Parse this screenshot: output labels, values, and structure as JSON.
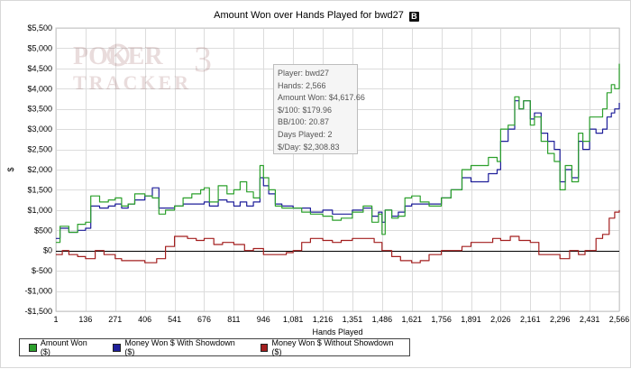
{
  "chart_data": {
    "type": "line",
    "title": "Amount Won over Hands Played for bwd27",
    "title_icon_letter": "B",
    "xlabel": "Hands Played",
    "ylabel": "$",
    "xlim": [
      1,
      2566
    ],
    "ylim": [
      -1500,
      5500
    ],
    "x_ticks": [
      1,
      136,
      271,
      406,
      541,
      676,
      811,
      946,
      1081,
      1216,
      1351,
      1486,
      1621,
      1756,
      1891,
      2026,
      2161,
      2296,
      2431,
      2566
    ],
    "x_tick_labels": [
      "1",
      "136",
      "271",
      "406",
      "541",
      "676",
      "811",
      "946",
      "1,081",
      "1,216",
      "1,351",
      "1,486",
      "1,621",
      "1,756",
      "1,891",
      "2,026",
      "2,161",
      "2,296",
      "2,431",
      "2,566"
    ],
    "y_ticks": [
      -1500,
      -1000,
      -500,
      0,
      500,
      1000,
      1500,
      2000,
      2500,
      3000,
      3500,
      4000,
      4500,
      5000,
      5500
    ],
    "y_tick_labels": [
      "-$1,500",
      "-$1,000",
      "$-500",
      "$0",
      "$500",
      "$1,000",
      "$1,500",
      "$2,000",
      "$2,500",
      "$3,000",
      "$3,500",
      "$4,000",
      "$4,500",
      "$5,000",
      "$5,500"
    ],
    "grid": true,
    "legend_position": "bottom-left",
    "series": [
      {
        "name": "Amount Won ($)",
        "color": "#2ca02c",
        "x": [
          1,
          20,
          60,
          100,
          136,
          160,
          200,
          240,
          271,
          300,
          330,
          360,
          406,
          440,
          470,
          500,
          541,
          580,
          620,
          660,
          676,
          700,
          740,
          780,
          811,
          840,
          870,
          900,
          930,
          946,
          970,
          1000,
          1030,
          1081,
          1120,
          1160,
          1216,
          1260,
          1300,
          1351,
          1400,
          1440,
          1470,
          1486,
          1500,
          1530,
          1560,
          1590,
          1621,
          1660,
          1700,
          1756,
          1800,
          1850,
          1891,
          1930,
          1970,
          2010,
          2026,
          2060,
          2090,
          2110,
          2130,
          2161,
          2180,
          2210,
          2240,
          2270,
          2296,
          2320,
          2350,
          2380,
          2400,
          2431,
          2460,
          2490,
          2510,
          2530,
          2545,
          2566
        ],
        "y": [
          200,
          600,
          450,
          650,
          700,
          1350,
          1200,
          1250,
          1300,
          1100,
          1150,
          1400,
          1350,
          1300,
          900,
          1000,
          1100,
          1300,
          1400,
          1500,
          1550,
          1200,
          1600,
          1400,
          1500,
          1700,
          1450,
          1300,
          2100,
          1800,
          1500,
          1100,
          1050,
          1050,
          950,
          900,
          850,
          750,
          800,
          950,
          1100,
          700,
          900,
          400,
          1000,
          800,
          850,
          1300,
          1350,
          1200,
          1100,
          1300,
          1500,
          2000,
          2100,
          2100,
          2300,
          2200,
          3000,
          3100,
          3800,
          3500,
          3700,
          3100,
          3300,
          2700,
          2400,
          2200,
          1500,
          2100,
          1700,
          2900,
          2700,
          3300,
          3300,
          3500,
          3900,
          4100,
          4000,
          4617.66
        ]
      },
      {
        "name": "Money Won $ With Showdown ($)",
        "color": "#1f1f9a",
        "x": [
          1,
          20,
          60,
          100,
          136,
          160,
          200,
          240,
          271,
          300,
          330,
          360,
          406,
          440,
          470,
          500,
          541,
          580,
          620,
          660,
          676,
          700,
          740,
          780,
          811,
          840,
          870,
          900,
          930,
          946,
          970,
          1000,
          1030,
          1081,
          1120,
          1160,
          1216,
          1260,
          1300,
          1351,
          1400,
          1440,
          1470,
          1486,
          1500,
          1530,
          1560,
          1590,
          1621,
          1660,
          1700,
          1756,
          1800,
          1850,
          1891,
          1930,
          1970,
          2010,
          2026,
          2060,
          2090,
          2110,
          2130,
          2161,
          2180,
          2210,
          2240,
          2270,
          2296,
          2320,
          2350,
          2380,
          2400,
          2431,
          2460,
          2490,
          2510,
          2530,
          2545,
          2566
        ],
        "y": [
          300,
          550,
          450,
          500,
          550,
          1100,
          1050,
          1100,
          1150,
          1050,
          1150,
          1250,
          1350,
          1550,
          1050,
          1050,
          1100,
          1150,
          1150,
          1150,
          1200,
          1100,
          1250,
          1200,
          1100,
          1200,
          1100,
          1200,
          1800,
          1600,
          1400,
          1150,
          1100,
          1050,
          1050,
          950,
          1000,
          900,
          900,
          1000,
          1050,
          850,
          950,
          700,
          1000,
          850,
          950,
          1100,
          1150,
          1150,
          1150,
          1300,
          1500,
          1800,
          1700,
          1700,
          1900,
          2000,
          2700,
          3000,
          3700,
          3500,
          3700,
          3250,
          3400,
          2900,
          2700,
          2500,
          1700,
          2000,
          1800,
          2700,
          2500,
          3000,
          2900,
          3000,
          3300,
          3400,
          3500,
          3650
        ]
      },
      {
        "name": "Money Won $ Without Showdown ($)",
        "color": "#a31f1f",
        "x": [
          1,
          30,
          60,
          100,
          136,
          180,
          220,
          271,
          300,
          350,
          406,
          460,
          500,
          541,
          570,
          600,
          640,
          676,
          720,
          760,
          800,
          811,
          860,
          900,
          946,
          1000,
          1050,
          1081,
          1120,
          1160,
          1216,
          1260,
          1300,
          1351,
          1400,
          1450,
          1486,
          1530,
          1570,
          1621,
          1660,
          1700,
          1756,
          1800,
          1850,
          1891,
          1940,
          1990,
          2026,
          2070,
          2110,
          2161,
          2200,
          2250,
          2296,
          2340,
          2380,
          2410,
          2431,
          2460,
          2490,
          2520,
          2545,
          2566
        ],
        "y": [
          -100,
          0,
          -100,
          -150,
          -200,
          0,
          -100,
          -200,
          -250,
          -250,
          -300,
          -200,
          100,
          350,
          350,
          300,
          250,
          300,
          150,
          200,
          200,
          150,
          0,
          50,
          -100,
          -100,
          -50,
          0,
          200,
          300,
          250,
          200,
          250,
          300,
          300,
          200,
          0,
          -150,
          -250,
          -300,
          -250,
          -100,
          0,
          0,
          100,
          200,
          200,
          300,
          250,
          350,
          250,
          200,
          -100,
          -100,
          -200,
          0,
          -100,
          0,
          0,
          300,
          400,
          800,
          950,
          1000
        ]
      }
    ],
    "annotation": {
      "lines": [
        "Player: bwd27",
        "Hands: 2,566",
        "Amount Won: $4,617.66",
        "$/100: $179.96",
        "BB/100: 20.87",
        "Days Played: 2",
        "$/Day: $2,308.83"
      ]
    },
    "watermark_text": [
      "POKER",
      "TRACKER"
    ]
  }
}
